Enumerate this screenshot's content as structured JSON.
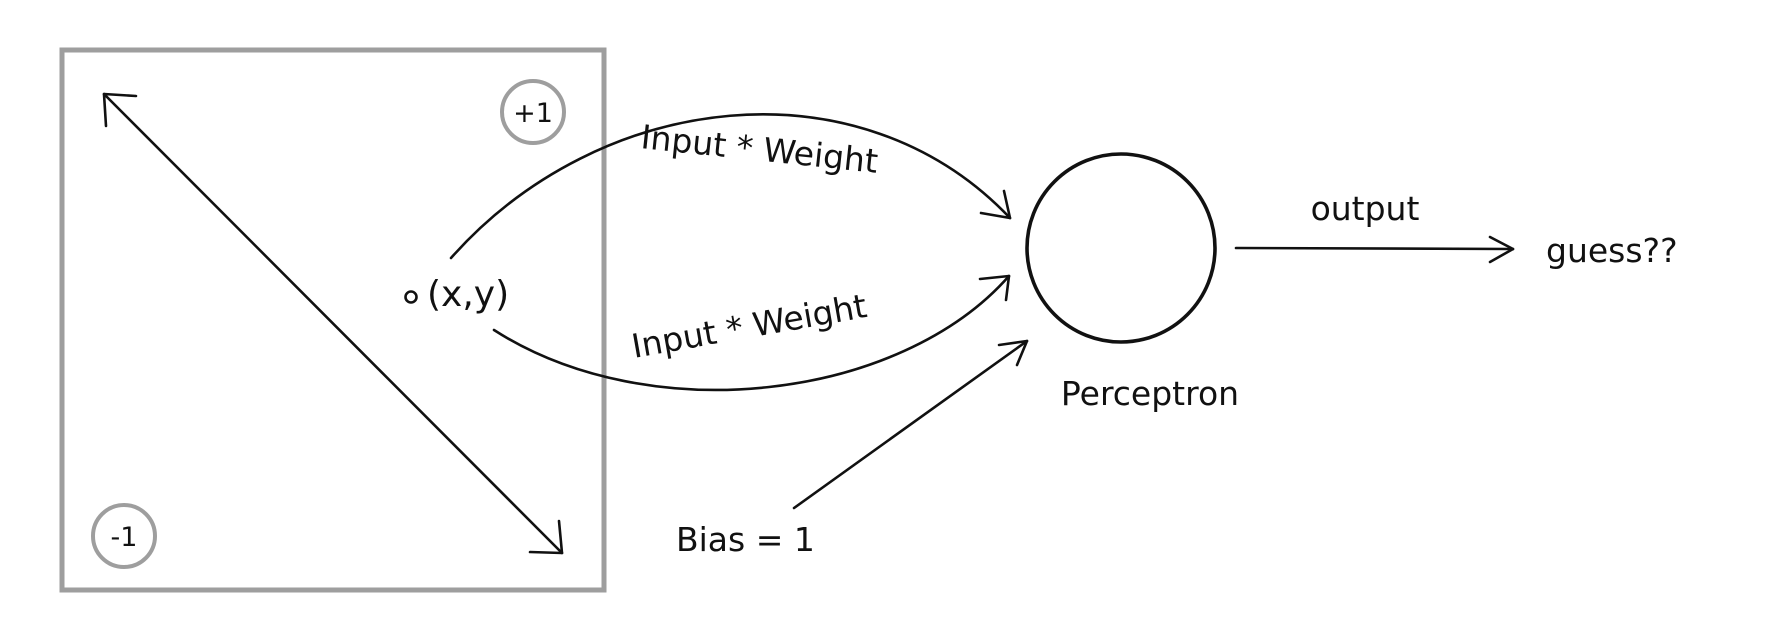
{
  "input_plane": {
    "plus_label": "+1",
    "minus_label": "-1",
    "point_label": "(x,y)"
  },
  "edges": {
    "top_label": "Input * Weight",
    "bottom_label": "Input * Weight",
    "bias_label": "Bias = 1"
  },
  "neuron": {
    "label": "Perceptron"
  },
  "output": {
    "edge_label": "output",
    "result_label": "guess??"
  }
}
